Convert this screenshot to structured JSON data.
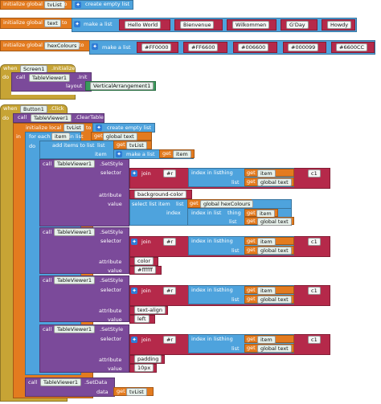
{
  "globals": {
    "tvList": {
      "kw": "initialize global",
      "name": "tvList",
      "to": "to",
      "create_label": "create empty list"
    },
    "text": {
      "kw": "initialize global",
      "name": "text",
      "to": "to",
      "make_label": "make a list",
      "items": [
        "Hello World",
        "Bienvenue",
        "Wilkommen",
        "G'Day",
        "Howdy"
      ]
    },
    "hexColours": {
      "kw": "initialize global",
      "name": "hexColours",
      "to": "to",
      "make_label": "make a list",
      "items": [
        "#FF0000",
        "#FF6600",
        "#006600",
        "#000099",
        "#6600CC"
      ]
    }
  },
  "screen_event": {
    "when": "when",
    "component": "Screen1",
    "event": ".Initialize",
    "do": "do",
    "call": "call",
    "viewer": "TableViewer1",
    "method": ".Init",
    "param": "layout",
    "layout_value": "VerticalArrangement1"
  },
  "button_event": {
    "when": "when",
    "component": "Button1",
    "event": ".Click",
    "do": "do",
    "clear_call": "call",
    "viewer": "TableViewer1",
    "clear_method": ".ClearTable",
    "init_local": "initialize local",
    "local_name": "tvList",
    "to": "to",
    "create_label": "create empty list",
    "in": "in",
    "for_each": "for each",
    "item": "item",
    "in_list": "in list",
    "get": "get",
    "global_text": "global text",
    "add_items": "add items to list",
    "list_label": "list",
    "item_label": "item",
    "make_label": "make a list"
  },
  "setstyle_blocks": [
    {
      "call": "call",
      "viewer": "TableViewer1",
      "method": ".SetStyle",
      "selector": "selector",
      "join": "join",
      "prefix": "#r",
      "index_label": "index in list",
      "thing": "thing",
      "get": "get",
      "item_var": "item",
      "list_label": "list",
      "list_var": "global text",
      "suffix": "c1",
      "attribute": "attribute",
      "attribute_value": "background-color",
      "value": "value",
      "select_label": "select list item",
      "select_list": "list",
      "select_list_var": "global hexColours",
      "index": "index",
      "second_index_label": "index in list",
      "second_thing": "thing",
      "second_list": "list"
    },
    {
      "call": "call",
      "viewer": "TableViewer1",
      "method": ".SetStyle",
      "selector": "selector",
      "join": "join",
      "prefix": "#r",
      "index_label": "index in list",
      "thing": "thing",
      "get": "get",
      "item_var": "item",
      "list_label": "list",
      "list_var": "global text",
      "suffix": "c1",
      "attribute": "attribute",
      "attribute_value": "color",
      "value": "value",
      "value_text": "#ffffff"
    },
    {
      "call": "call",
      "viewer": "TableViewer1",
      "method": ".SetStyle",
      "selector": "selector",
      "join": "join",
      "prefix": "#r",
      "index_label": "index in list",
      "thing": "thing",
      "get": "get",
      "item_var": "item",
      "list_label": "list",
      "list_var": "global text",
      "suffix": "c1",
      "attribute": "attribute",
      "attribute_value": "text-align",
      "value": "value",
      "value_text": "left"
    },
    {
      "call": "call",
      "viewer": "TableViewer1",
      "method": ".SetStyle",
      "selector": "selector",
      "join": "join",
      "prefix": "#r",
      "index_label": "index in list",
      "thing": "thing",
      "get": "get",
      "item_var": "item",
      "list_label": "list",
      "list_var": "global text",
      "suffix": "c1",
      "attribute": "attribute",
      "attribute_value": "padding",
      "value": "value",
      "value_text": "10px"
    }
  ],
  "setdata": {
    "call": "call",
    "viewer": "TableViewer1",
    "method": ".SetData",
    "data": "data",
    "get": "get",
    "var": "tvList"
  },
  "colors": {
    "variables": "#e37b1f",
    "events": "#c7a435",
    "components": "#7b4a9a",
    "lists": "#4ea3dd",
    "text": "#b5294a",
    "math": "#2f7bd6"
  }
}
